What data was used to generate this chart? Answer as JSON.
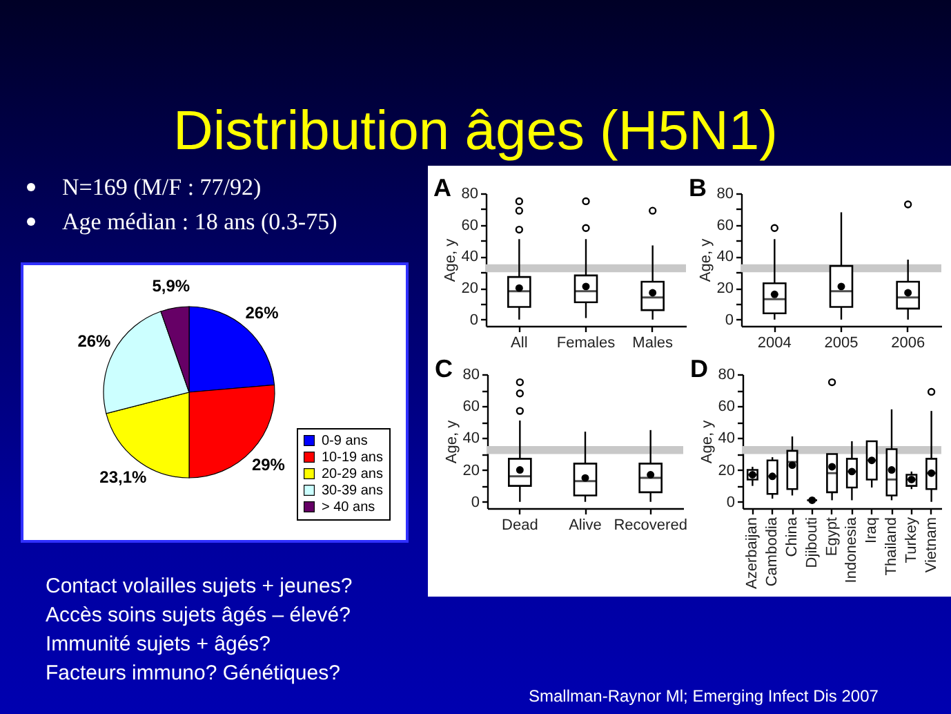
{
  "chart_data": [
    {
      "type": "other",
      "title": "Distribution âges (H5N1)",
      "annotations": [
        "N=169 (M/F : 77/92)",
        "Age médian : 18 ans (0.3-75)",
        "Contact volailles sujets + jeunes?",
        "Accès soins sujets âgés – élevé?",
        "Immunité sujets + âgés?",
        "Facteurs immuno? Génétiques?",
        "Smallman-Raynor Ml; Emerging Infect Dis 2007"
      ]
    },
    {
      "type": "pie",
      "categories": [
        "0-9 ans",
        "10-19 ans",
        "20-29 ans",
        "30-39 ans",
        "> 40 ans"
      ],
      "values": [
        26,
        29,
        23.1,
        26,
        5.9
      ],
      "colors": [
        "#0000ff",
        "#ff0000",
        "#ffff00",
        "#ccffff",
        "#660066"
      ],
      "value_labels": [
        "26%",
        "29%",
        "23,1%",
        "26%",
        "5,9%"
      ],
      "legend": "bottom right"
    },
    {
      "type": "box",
      "title": "A",
      "categories": [
        "All",
        "Females",
        "Males"
      ],
      "ylabel": "Age, y",
      "ylim": [
        -4,
        80
      ],
      "yticks": [
        0,
        {
          "value": 10,
          "label": null
        },
        20,
        {
          "value": 30,
          "label": null
        },
        40,
        {
          "value": 50,
          "label": null
        },
        60,
        {
          "value": 70,
          "label": null
        },
        80
      ],
      "color": "#000000",
      "bands": [
        {
          "axis": "y",
          "from": 30,
          "to": 35,
          "color": "#c8c8c8"
        }
      ],
      "boxes": [
        {
          "low": 0,
          "q1": 8,
          "median": 18,
          "q3": 27,
          "high": 51,
          "mean": 20,
          "outliers": [
            57,
            69,
            75
          ]
        },
        {
          "low": 1,
          "q1": 11,
          "median": 18,
          "q3": 28,
          "high": 51,
          "mean": 21,
          "outliers": [
            58,
            75
          ]
        },
        {
          "low": 0,
          "q1": 6,
          "median": 14,
          "q3": 24,
          "high": 47,
          "mean": 17,
          "outliers": [
            69
          ]
        }
      ]
    },
    {
      "type": "box",
      "title": "B",
      "categories": [
        "2004",
        "2005",
        "2006"
      ],
      "ylabel": "Age, y",
      "ylim": [
        -4,
        80
      ],
      "yticks": [
        0,
        {
          "value": 10,
          "label": null
        },
        20,
        {
          "value": 30,
          "label": null
        },
        40,
        {
          "value": 50,
          "label": null
        },
        60,
        {
          "value": 70,
          "label": null
        },
        80
      ],
      "color": "#000000",
      "bands": [
        {
          "axis": "y",
          "from": 30,
          "to": 35,
          "color": "#c8c8c8"
        }
      ],
      "boxes": [
        {
          "low": 0,
          "q1": 4,
          "median": 13,
          "q3": 23,
          "high": 51,
          "mean": 16,
          "outliers": [
            58
          ]
        },
        {
          "low": 0,
          "q1": 8,
          "median": 18,
          "q3": 34,
          "high": 68,
          "mean": 21
        },
        {
          "low": 0,
          "q1": 7,
          "median": 14,
          "q3": 24,
          "high": 38,
          "mean": 17,
          "outliers": [
            73
          ]
        }
      ]
    },
    {
      "type": "box",
      "title": "C",
      "categories": [
        "Dead",
        "Alive",
        "Recovered"
      ],
      "ylabel": "Age, y",
      "ylim": [
        -4,
        80
      ],
      "yticks": [
        0,
        {
          "value": 10,
          "label": null
        },
        20,
        {
          "value": 30,
          "label": null
        },
        40,
        {
          "value": 50,
          "label": null
        },
        60,
        {
          "value": 70,
          "label": null
        },
        80
      ],
      "color": "#000000",
      "bands": [
        {
          "axis": "y",
          "from": 30,
          "to": 35,
          "color": "#c8c8c8"
        }
      ],
      "boxes": [
        {
          "low": 0,
          "q1": 10,
          "median": 16,
          "q3": 27,
          "high": 51,
          "mean": 20,
          "outliers": [
            57,
            68,
            75
          ]
        },
        {
          "low": 0,
          "q1": 4,
          "median": 13,
          "q3": 24,
          "high": 44,
          "mean": 15
        },
        {
          "low": 0,
          "q1": 6,
          "median": 15,
          "q3": 24,
          "high": 45,
          "mean": 17
        }
      ]
    },
    {
      "type": "box",
      "title": "D",
      "categories": [
        "Azerbaijan",
        "Cambodia",
        "China",
        "Djibouti",
        "Egypt",
        "Indonesia",
        "Iraq",
        "Thailand",
        "Turkey",
        "Vietnam"
      ],
      "ylabel": "Age, y",
      "ylim": [
        -4,
        80
      ],
      "yticks": [
        0,
        {
          "value": 10,
          "label": null
        },
        20,
        {
          "value": 30,
          "label": null
        },
        40,
        {
          "value": 50,
          "label": null
        },
        60,
        {
          "value": 70,
          "label": null
        },
        80
      ],
      "color": "#000000",
      "bands": [
        {
          "axis": "y",
          "from": 30,
          "to": 35,
          "color": "#c8c8c8"
        }
      ],
      "boxes": [
        {
          "low": 10,
          "q1": 14,
          "median": 17,
          "q3": 20,
          "high": 22,
          "mean": 17
        },
        {
          "low": 2,
          "q1": 5,
          "median": 16,
          "q3": 26,
          "high": 28,
          "mean": 16
        },
        {
          "low": 4,
          "q1": 8,
          "median": 25,
          "q3": 32,
          "high": 41,
          "mean": 23
        },
        {
          "low": 1,
          "q1": 1,
          "median": 1,
          "q3": 1,
          "high": 1,
          "mean": 1
        },
        {
          "low": 1,
          "q1": 6,
          "median": 18,
          "q3": 30,
          "high": 30,
          "mean": 22,
          "outliers": [
            75
          ]
        },
        {
          "low": 1,
          "q1": 9,
          "median": 19,
          "q3": 27,
          "high": 38,
          "mean": 19
        },
        {
          "low": 9,
          "q1": 14,
          "median": 26,
          "q3": 38,
          "high": 38,
          "mean": 26
        },
        {
          "low": 1,
          "q1": 4,
          "median": 14,
          "q3": 33,
          "high": 58,
          "mean": 20
        },
        {
          "low": 8,
          "q1": 10,
          "median": 14,
          "q3": 17,
          "high": 19,
          "mean": 14
        },
        {
          "low": 0,
          "q1": 8,
          "median": 18,
          "q3": 27,
          "high": 57,
          "mean": 18,
          "outliers": [
            69
          ]
        }
      ]
    }
  ]
}
